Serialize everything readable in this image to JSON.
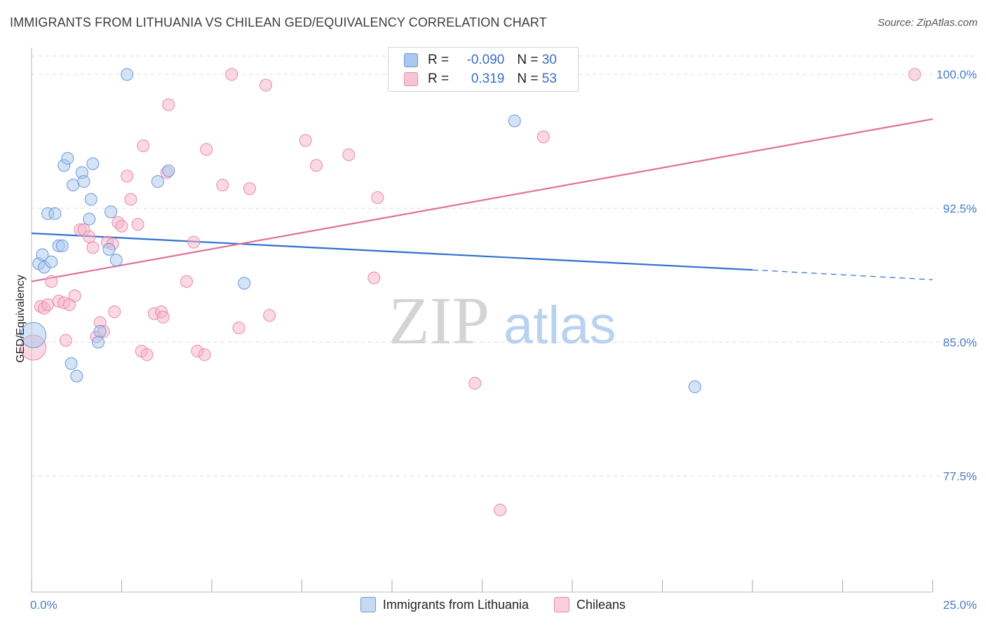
{
  "header": {
    "title": "IMMIGRANTS FROM LITHUANIA VS CHILEAN GED/EQUIVALENCY CORRELATION CHART",
    "source": "Source: ZipAtlas.com"
  },
  "watermark": {
    "zip": "ZIP",
    "atlas": "atlas"
  },
  "legend": {
    "rows": [
      {
        "r_label": "R = ",
        "r_value": "-0.090",
        "n_label": "N = ",
        "n_value": "30"
      },
      {
        "r_label": "R = ",
        "r_value": "0.319",
        "n_label": "N = ",
        "n_value": "53"
      }
    ]
  },
  "bottom_legend": {
    "series_a": "Immigrants from Lithuania",
    "series_b": "Chileans"
  },
  "colors": {
    "blue_fill": "#aac7ee",
    "blue_stroke": "#6a98d8",
    "blue_line": "#2f6fcf",
    "pink_fill": "#f5b3c8",
    "pink_stroke": "#e88aa8",
    "pink_line": "#e0709a",
    "tick_text": "#4a7cc7",
    "grid": "#dddddd"
  },
  "chart_data": {
    "type": "scatter",
    "title": "IMMIGRANTS FROM LITHUANIA VS CHILEAN GED/EQUIVALENCY CORRELATION CHART",
    "xlabel": "",
    "ylabel": "GED/Equivalency",
    "xlim": [
      0,
      25
    ],
    "ylim": [
      71,
      101.5
    ],
    "x_tick_labels": [
      "0.0%",
      "25.0%"
    ],
    "y_ticks": [
      77.5,
      85.0,
      92.5,
      100.0
    ],
    "y_tick_labels": [
      "77.5%",
      "85.0%",
      "92.5%",
      "100.0%"
    ],
    "grid": true,
    "legend_position": "top-center",
    "series": [
      {
        "name": "Immigrants from Lithuania",
        "color": "#aac7ee",
        "trend": {
          "x_start": 0,
          "y_start": 91.1,
          "x_end": 20,
          "y_end": 89.05,
          "x_dash_end": 25,
          "y_dash_end": 88.5
        },
        "points": [
          {
            "x": 0.05,
            "y": 85.4,
            "big": true
          },
          {
            "x": 0.2,
            "y": 89.4
          },
          {
            "x": 0.3,
            "y": 89.9
          },
          {
            "x": 0.35,
            "y": 89.2
          },
          {
            "x": 0.45,
            "y": 92.2
          },
          {
            "x": 0.55,
            "y": 89.5
          },
          {
            "x": 0.65,
            "y": 92.2
          },
          {
            "x": 0.75,
            "y": 90.4
          },
          {
            "x": 0.85,
            "y": 90.4
          },
          {
            "x": 0.9,
            "y": 94.9
          },
          {
            "x": 1.0,
            "y": 95.3
          },
          {
            "x": 1.1,
            "y": 83.8
          },
          {
            "x": 1.15,
            "y": 93.8
          },
          {
            "x": 1.25,
            "y": 83.1
          },
          {
            "x": 1.4,
            "y": 94.5
          },
          {
            "x": 1.45,
            "y": 94.0
          },
          {
            "x": 1.6,
            "y": 91.9
          },
          {
            "x": 1.65,
            "y": 93.0
          },
          {
            "x": 1.7,
            "y": 95.0
          },
          {
            "x": 1.9,
            "y": 85.6
          },
          {
            "x": 1.85,
            "y": 85.0
          },
          {
            "x": 2.15,
            "y": 90.2
          },
          {
            "x": 2.2,
            "y": 92.3
          },
          {
            "x": 2.35,
            "y": 89.6
          },
          {
            "x": 2.65,
            "y": 100.0
          },
          {
            "x": 3.5,
            "y": 94.0
          },
          {
            "x": 3.8,
            "y": 94.6
          },
          {
            "x": 5.9,
            "y": 88.3
          },
          {
            "x": 13.4,
            "y": 97.4
          },
          {
            "x": 18.4,
            "y": 82.5
          }
        ]
      },
      {
        "name": "Chileans",
        "color": "#f5b3c8",
        "trend": {
          "x_start": 0,
          "y_start": 88.4,
          "x_end": 25,
          "y_end": 97.5
        },
        "points": [
          {
            "x": 0.05,
            "y": 84.7,
            "big": true
          },
          {
            "x": 0.25,
            "y": 87.0
          },
          {
            "x": 0.35,
            "y": 86.9
          },
          {
            "x": 0.45,
            "y": 87.1
          },
          {
            "x": 0.55,
            "y": 88.4
          },
          {
            "x": 0.75,
            "y": 87.3
          },
          {
            "x": 0.9,
            "y": 87.2
          },
          {
            "x": 0.95,
            "y": 85.1
          },
          {
            "x": 1.05,
            "y": 87.1
          },
          {
            "x": 1.2,
            "y": 87.6
          },
          {
            "x": 1.35,
            "y": 91.3
          },
          {
            "x": 1.45,
            "y": 91.3
          },
          {
            "x": 1.6,
            "y": 90.9
          },
          {
            "x": 1.7,
            "y": 90.3
          },
          {
            "x": 1.8,
            "y": 85.3
          },
          {
            "x": 1.9,
            "y": 86.1
          },
          {
            "x": 2.0,
            "y": 85.6
          },
          {
            "x": 2.1,
            "y": 90.6
          },
          {
            "x": 2.25,
            "y": 90.5
          },
          {
            "x": 2.3,
            "y": 86.7
          },
          {
            "x": 2.4,
            "y": 91.7
          },
          {
            "x": 2.5,
            "y": 91.5
          },
          {
            "x": 2.65,
            "y": 94.3
          },
          {
            "x": 2.75,
            "y": 93.0
          },
          {
            "x": 2.95,
            "y": 91.6
          },
          {
            "x": 3.05,
            "y": 84.5
          },
          {
            "x": 3.1,
            "y": 96.0
          },
          {
            "x": 3.2,
            "y": 84.3
          },
          {
            "x": 3.4,
            "y": 86.6
          },
          {
            "x": 3.6,
            "y": 86.7
          },
          {
            "x": 3.65,
            "y": 86.4
          },
          {
            "x": 3.75,
            "y": 94.5
          },
          {
            "x": 3.8,
            "y": 98.3
          },
          {
            "x": 4.3,
            "y": 88.4
          },
          {
            "x": 4.5,
            "y": 90.6
          },
          {
            "x": 4.6,
            "y": 84.5
          },
          {
            "x": 4.8,
            "y": 84.3
          },
          {
            "x": 4.85,
            "y": 95.8
          },
          {
            "x": 5.3,
            "y": 93.8
          },
          {
            "x": 5.55,
            "y": 100.0
          },
          {
            "x": 5.75,
            "y": 85.8
          },
          {
            "x": 6.05,
            "y": 93.6
          },
          {
            "x": 6.5,
            "y": 99.4
          },
          {
            "x": 6.6,
            "y": 86.5
          },
          {
            "x": 7.6,
            "y": 96.3
          },
          {
            "x": 7.9,
            "y": 94.9
          },
          {
            "x": 8.8,
            "y": 95.5
          },
          {
            "x": 9.5,
            "y": 88.6
          },
          {
            "x": 9.6,
            "y": 93.1
          },
          {
            "x": 12.3,
            "y": 82.7
          },
          {
            "x": 13.0,
            "y": 75.6
          },
          {
            "x": 14.0,
            "y": 100.0
          },
          {
            "x": 14.2,
            "y": 96.5
          },
          {
            "x": 24.5,
            "y": 100.0
          }
        ]
      }
    ]
  }
}
